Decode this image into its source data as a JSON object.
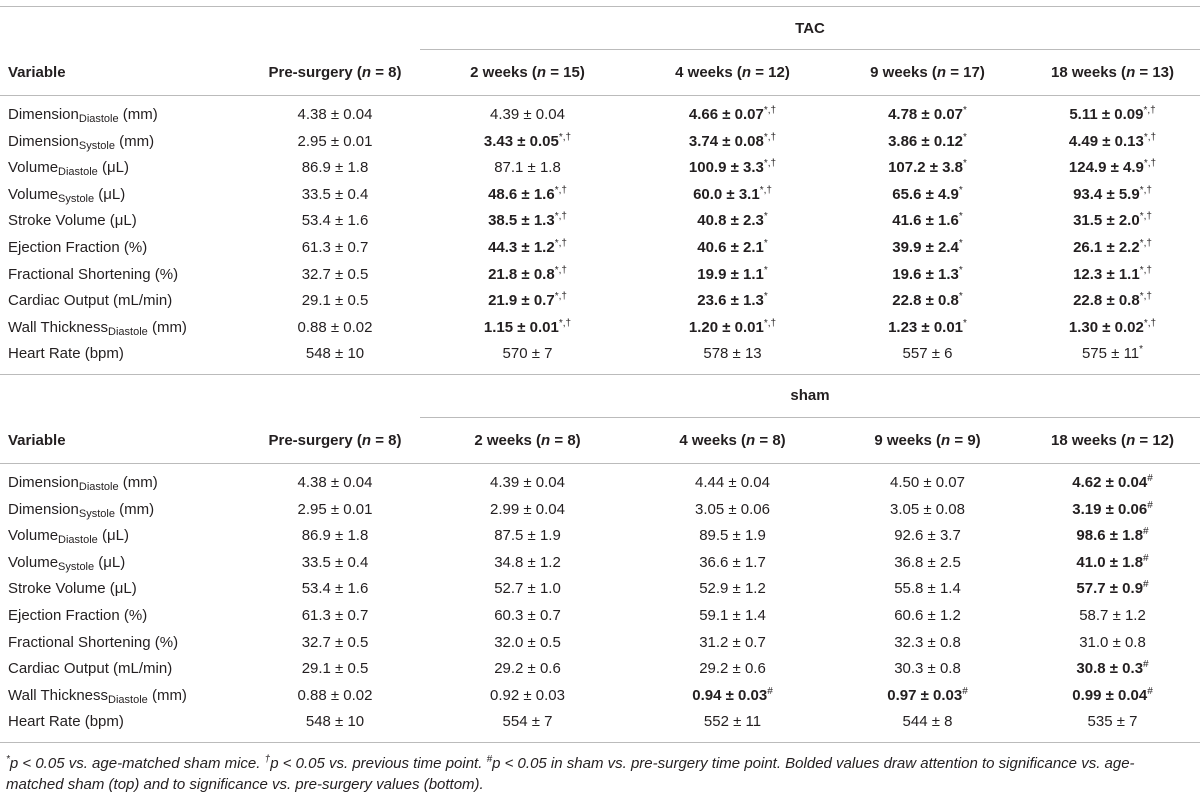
{
  "sections": [
    {
      "group": "TAC",
      "columns": [
        {
          "pre": "Variable"
        },
        {
          "pre": "Pre-surgery (",
          "italic": "n",
          "post": " = 8)"
        },
        {
          "pre": "2 weeks (",
          "italic": "n",
          "post": " = 15)"
        },
        {
          "pre": "4 weeks (",
          "italic": "n",
          "post": " = 12)"
        },
        {
          "pre": "9 weeks (",
          "italic": "n",
          "post": " = 17)"
        },
        {
          "pre": "18 weeks (",
          "italic": "n",
          "post": " = 13)"
        }
      ],
      "rows": [
        {
          "variable": {
            "name": "Dimension",
            "sub": "Diastole",
            "unit": " (mm)"
          },
          "cells": [
            {
              "v": "4.38 ± 0.04"
            },
            {
              "v": "4.39 ± 0.04"
            },
            {
              "v": "4.66 ± 0.07",
              "b": true,
              "sup": "*,†"
            },
            {
              "v": "4.78 ± 0.07",
              "b": true,
              "sup": "*"
            },
            {
              "v": "5.11 ± 0.09",
              "b": true,
              "sup": "*,†"
            }
          ]
        },
        {
          "variable": {
            "name": "Dimension",
            "sub": "Systole",
            "unit": " (mm)"
          },
          "cells": [
            {
              "v": "2.95 ± 0.01"
            },
            {
              "v": "3.43 ± 0.05",
              "b": true,
              "sup": "*,†"
            },
            {
              "v": "3.74 ± 0.08",
              "b": true,
              "sup": "*,†"
            },
            {
              "v": "3.86 ± 0.12",
              "b": true,
              "sup": "*"
            },
            {
              "v": "4.49 ± 0.13",
              "b": true,
              "sup": "*,†"
            }
          ]
        },
        {
          "variable": {
            "name": "Volume",
            "sub": "Diastole",
            "unit": " (μL)"
          },
          "cells": [
            {
              "v": "86.9 ± 1.8"
            },
            {
              "v": "87.1 ± 1.8"
            },
            {
              "v": "100.9 ± 3.3",
              "b": true,
              "sup": "*,†"
            },
            {
              "v": "107.2 ± 3.8",
              "b": true,
              "sup": "*"
            },
            {
              "v": "124.9 ± 4.9",
              "b": true,
              "sup": "*,†"
            }
          ]
        },
        {
          "variable": {
            "name": "Volume",
            "sub": "Systole",
            "unit": " (μL)"
          },
          "cells": [
            {
              "v": "33.5 ± 0.4"
            },
            {
              "v": "48.6 ± 1.6",
              "b": true,
              "sup": "*,†"
            },
            {
              "v": "60.0 ± 3.1",
              "b": true,
              "sup": "*,†"
            },
            {
              "v": "65.6 ± 4.9",
              "b": true,
              "sup": "*"
            },
            {
              "v": "93.4 ± 5.9",
              "b": true,
              "sup": "*,†"
            }
          ]
        },
        {
          "variable": {
            "name": "Stroke Volume (μL)"
          },
          "cells": [
            {
              "v": "53.4 ± 1.6"
            },
            {
              "v": "38.5 ± 1.3",
              "b": true,
              "sup": "*,†"
            },
            {
              "v": "40.8 ± 2.3",
              "b": true,
              "sup": "*"
            },
            {
              "v": "41.6 ± 1.6",
              "b": true,
              "sup": "*"
            },
            {
              "v": "31.5 ± 2.0",
              "b": true,
              "sup": "*,†"
            }
          ]
        },
        {
          "variable": {
            "name": "Ejection Fraction (%)"
          },
          "cells": [
            {
              "v": "61.3 ± 0.7"
            },
            {
              "v": "44.3 ± 1.2",
              "b": true,
              "sup": "*,†"
            },
            {
              "v": "40.6 ± 2.1",
              "b": true,
              "sup": "*"
            },
            {
              "v": "39.9 ± 2.4",
              "b": true,
              "sup": "*"
            },
            {
              "v": "26.1 ± 2.2",
              "b": true,
              "sup": "*,†"
            }
          ]
        },
        {
          "variable": {
            "name": "Fractional Shortening (%)"
          },
          "cells": [
            {
              "v": "32.7 ± 0.5"
            },
            {
              "v": "21.8 ± 0.8",
              "b": true,
              "sup": "*,†"
            },
            {
              "v": "19.9 ± 1.1",
              "b": true,
              "sup": "*"
            },
            {
              "v": "19.6 ± 1.3",
              "b": true,
              "sup": "*"
            },
            {
              "v": "12.3 ± 1.1",
              "b": true,
              "sup": "*,†"
            }
          ]
        },
        {
          "variable": {
            "name": "Cardiac Output (mL/min)"
          },
          "cells": [
            {
              "v": "29.1 ± 0.5"
            },
            {
              "v": "21.9 ± 0.7",
              "b": true,
              "sup": "*,†"
            },
            {
              "v": "23.6 ± 1.3",
              "b": true,
              "sup": "*"
            },
            {
              "v": "22.8 ± 0.8",
              "b": true,
              "sup": "*"
            },
            {
              "v": "22.8 ± 0.8",
              "b": true,
              "sup": "*,†"
            }
          ]
        },
        {
          "variable": {
            "name": "Wall Thickness",
            "sub": "Diastole",
            "unit": " (mm)"
          },
          "cells": [
            {
              "v": "0.88 ± 0.02"
            },
            {
              "v": "1.15 ± 0.01",
              "b": true,
              "sup": "*,†"
            },
            {
              "v": "1.20 ± 0.01",
              "b": true,
              "sup": "*,†"
            },
            {
              "v": "1.23 ± 0.01",
              "b": true,
              "sup": "*"
            },
            {
              "v": "1.30 ± 0.02",
              "b": true,
              "sup": "*,†"
            }
          ]
        },
        {
          "variable": {
            "name": "Heart Rate (bpm)"
          },
          "cells": [
            {
              "v": "548 ± 10"
            },
            {
              "v": "570 ± 7"
            },
            {
              "v": "578 ± 13"
            },
            {
              "v": "557 ± 6"
            },
            {
              "v": "575 ± 11",
              "sup": "*"
            }
          ]
        }
      ]
    },
    {
      "group": "sham",
      "columns": [
        {
          "pre": "Variable"
        },
        {
          "pre": "Pre-surgery (",
          "italic": "n",
          "post": " = 8)"
        },
        {
          "pre": "2 weeks (",
          "italic": "n",
          "post": " = 8)"
        },
        {
          "pre": "4 weeks (",
          "italic": "n",
          "post": " = 8)"
        },
        {
          "pre": "9 weeks (",
          "italic": "n",
          "post": " = 9)"
        },
        {
          "pre": "18 weeks (",
          "italic": "n",
          "post": " = 12)"
        }
      ],
      "rows": [
        {
          "variable": {
            "name": "Dimension",
            "sub": "Diastole",
            "unit": " (mm)"
          },
          "cells": [
            {
              "v": "4.38 ± 0.04"
            },
            {
              "v": "4.39 ± 0.04"
            },
            {
              "v": "4.44 ± 0.04"
            },
            {
              "v": "4.50 ± 0.07"
            },
            {
              "v": "4.62 ± 0.04",
              "b": true,
              "sup": "#"
            }
          ]
        },
        {
          "variable": {
            "name": "Dimension",
            "sub": "Systole",
            "unit": " (mm)"
          },
          "cells": [
            {
              "v": "2.95 ± 0.01"
            },
            {
              "v": "2.99 ± 0.04"
            },
            {
              "v": "3.05 ± 0.06"
            },
            {
              "v": "3.05 ± 0.08"
            },
            {
              "v": "3.19 ± 0.06",
              "b": true,
              "sup": "#"
            }
          ]
        },
        {
          "variable": {
            "name": "Volume",
            "sub": "Diastole",
            "unit": " (μL)"
          },
          "cells": [
            {
              "v": "86.9 ± 1.8"
            },
            {
              "v": "87.5 ± 1.9"
            },
            {
              "v": "89.5 ± 1.9"
            },
            {
              "v": "92.6 ± 3.7"
            },
            {
              "v": "98.6 ± 1.8",
              "b": true,
              "sup": "#"
            }
          ]
        },
        {
          "variable": {
            "name": "Volume",
            "sub": "Systole",
            "unit": " (μL)"
          },
          "cells": [
            {
              "v": "33.5 ± 0.4"
            },
            {
              "v": "34.8 ± 1.2"
            },
            {
              "v": "36.6 ± 1.7"
            },
            {
              "v": "36.8 ± 2.5"
            },
            {
              "v": "41.0 ± 1.8",
              "b": true,
              "sup": "#"
            }
          ]
        },
        {
          "variable": {
            "name": "Stroke Volume (μL)"
          },
          "cells": [
            {
              "v": "53.4 ± 1.6"
            },
            {
              "v": "52.7 ± 1.0"
            },
            {
              "v": "52.9 ± 1.2"
            },
            {
              "v": "55.8 ± 1.4"
            },
            {
              "v": "57.7 ± 0.9",
              "b": true,
              "sup": "#"
            }
          ]
        },
        {
          "variable": {
            "name": "Ejection Fraction (%)"
          },
          "cells": [
            {
              "v": "61.3 ± 0.7"
            },
            {
              "v": "60.3 ± 0.7"
            },
            {
              "v": "59.1 ± 1.4"
            },
            {
              "v": "60.6 ± 1.2"
            },
            {
              "v": "58.7 ± 1.2"
            }
          ]
        },
        {
          "variable": {
            "name": "Fractional Shortening (%)"
          },
          "cells": [
            {
              "v": "32.7 ± 0.5"
            },
            {
              "v": "32.0 ± 0.5"
            },
            {
              "v": "31.2 ± 0.7"
            },
            {
              "v": "32.3 ± 0.8"
            },
            {
              "v": "31.0 ± 0.8"
            }
          ]
        },
        {
          "variable": {
            "name": "Cardiac Output (mL/min)"
          },
          "cells": [
            {
              "v": "29.1 ± 0.5"
            },
            {
              "v": "29.2 ± 0.6"
            },
            {
              "v": "29.2 ± 0.6"
            },
            {
              "v": "30.3 ± 0.8"
            },
            {
              "v": "30.8 ± 0.3",
              "b": true,
              "sup": "#"
            }
          ]
        },
        {
          "variable": {
            "name": "Wall Thickness",
            "sub": "Diastole",
            "unit": " (mm)"
          },
          "cells": [
            {
              "v": "0.88 ± 0.02"
            },
            {
              "v": "0.92 ± 0.03"
            },
            {
              "v": "0.94 ± 0.03",
              "b": true,
              "sup": "#"
            },
            {
              "v": "0.97 ± 0.03",
              "b": true,
              "sup": "#"
            },
            {
              "v": "0.99 ± 0.04",
              "b": true,
              "sup": "#"
            }
          ]
        },
        {
          "variable": {
            "name": "Heart Rate (bpm)"
          },
          "cells": [
            {
              "v": "548 ± 10"
            },
            {
              "v": "554 ± 7"
            },
            {
              "v": "552 ± 11"
            },
            {
              "v": "544 ± 8"
            },
            {
              "v": "535 ± 7"
            }
          ]
        }
      ]
    }
  ],
  "footnote": [
    {
      "sup": "*"
    },
    {
      "text": "p < 0.05 vs. age-matched sham mice. "
    },
    {
      "sup": "†"
    },
    {
      "text": "p < 0.05 vs. previous time point. "
    },
    {
      "sup": "#"
    },
    {
      "text": "p < 0.05 in sham vs. pre-surgery time point. Bolded values draw attention to significance vs. age-matched sham (top) and to significance vs. pre-surgery values (bottom)."
    }
  ]
}
